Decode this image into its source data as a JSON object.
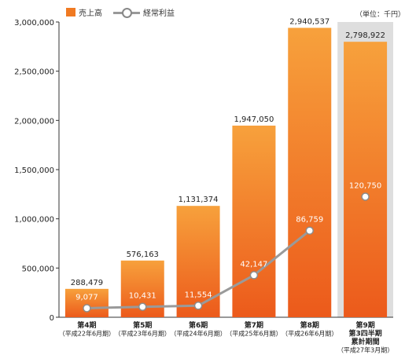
{
  "legend": {
    "bar_label": "売上高",
    "line_label": "経常利益"
  },
  "unit_label": "（単位：千円）",
  "colors": {
    "bar_top": "#f7a13c",
    "bar_bottom": "#ec5a1b",
    "line": "#9a9a9a",
    "marker_fill": "#ffffff",
    "marker_stroke": "#8c8c8c",
    "highlight_bg": "#dedede",
    "line_label": "#ffffff"
  },
  "chart_data": {
    "type": "bar",
    "categories": [
      [
        "第4期",
        "（平成22年6月期）"
      ],
      [
        "第5期",
        "（平成23年6月期）"
      ],
      [
        "第6期",
        "（平成24年6月期）"
      ],
      [
        "第7期",
        "（平成25年6月期）"
      ],
      [
        "第8期",
        "（平成26年6月期）"
      ],
      [
        "第9期",
        "第3四半期",
        "累計期間",
        "（平成27年3月期）"
      ]
    ],
    "series": [
      {
        "name": "売上高",
        "type": "bar",
        "values": [
          288479,
          576163,
          1131374,
          1947050,
          2940537,
          2798922
        ],
        "labels": [
          "288,479",
          "576,163",
          "1,131,374",
          "1,947,050",
          "2,940,537",
          "2,798,922"
        ]
      },
      {
        "name": "経常利益",
        "type": "line",
        "values": [
          9077,
          10431,
          11554,
          42147,
          86759,
          120750
        ],
        "labels": [
          "9,077",
          "10,431",
          "11,554",
          "42,147",
          "86,759",
          "120,750"
        ],
        "connected_points": 5
      }
    ],
    "ylim": [
      0,
      3000000
    ],
    "yticks": [
      0,
      500000,
      1000000,
      1500000,
      2000000,
      2500000,
      3000000
    ],
    "ytick_labels": [
      "0",
      "500,000",
      "1,000,000",
      "1,500,000",
      "2,000,000",
      "2,500,000",
      "3,000,000"
    ],
    "line_ylim": [
      0,
      140000
    ],
    "highlighted_category": 5,
    "grid": false,
    "legend_position": "top-left"
  }
}
